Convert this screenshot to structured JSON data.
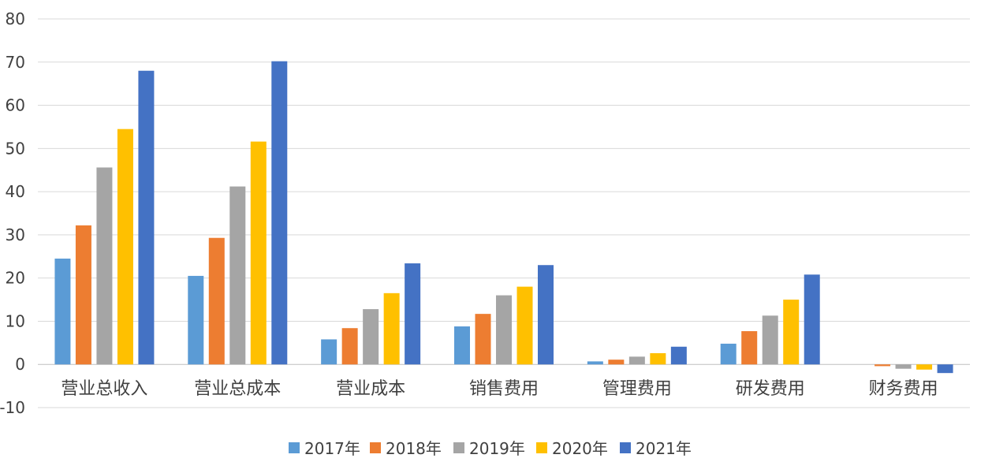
{
  "chart_data": {
    "type": "bar",
    "title": "",
    "xlabel": "",
    "ylabel": "",
    "ylim": [
      -10,
      80
    ],
    "yticks": [
      -10,
      0,
      10,
      20,
      30,
      40,
      50,
      60,
      70,
      80
    ],
    "grid": true,
    "legend_position": "bottom",
    "categories": [
      "营业总收入",
      "营业总成本",
      "营业成本",
      "销售费用",
      "管理费用",
      "研发费用",
      "财务费用"
    ],
    "series": [
      {
        "name": "2017年",
        "color": "#5b9bd5",
        "values": [
          24.5,
          20.5,
          5.8,
          8.8,
          0.7,
          4.8,
          0.0
        ]
      },
      {
        "name": "2018年",
        "color": "#ed7d31",
        "values": [
          32.2,
          29.3,
          8.4,
          11.7,
          1.1,
          7.7,
          -0.4
        ]
      },
      {
        "name": "2019年",
        "color": "#a5a5a5",
        "values": [
          45.6,
          41.2,
          12.8,
          16.0,
          1.8,
          11.3,
          -1.0
        ]
      },
      {
        "name": "2020年",
        "color": "#ffc000",
        "values": [
          54.5,
          51.6,
          16.5,
          18.0,
          2.6,
          15.0,
          -1.2
        ]
      },
      {
        "name": "2021年",
        "color": "#4472c4",
        "values": [
          68.0,
          70.2,
          23.4,
          23.0,
          4.1,
          20.8,
          -2.0
        ]
      }
    ]
  }
}
